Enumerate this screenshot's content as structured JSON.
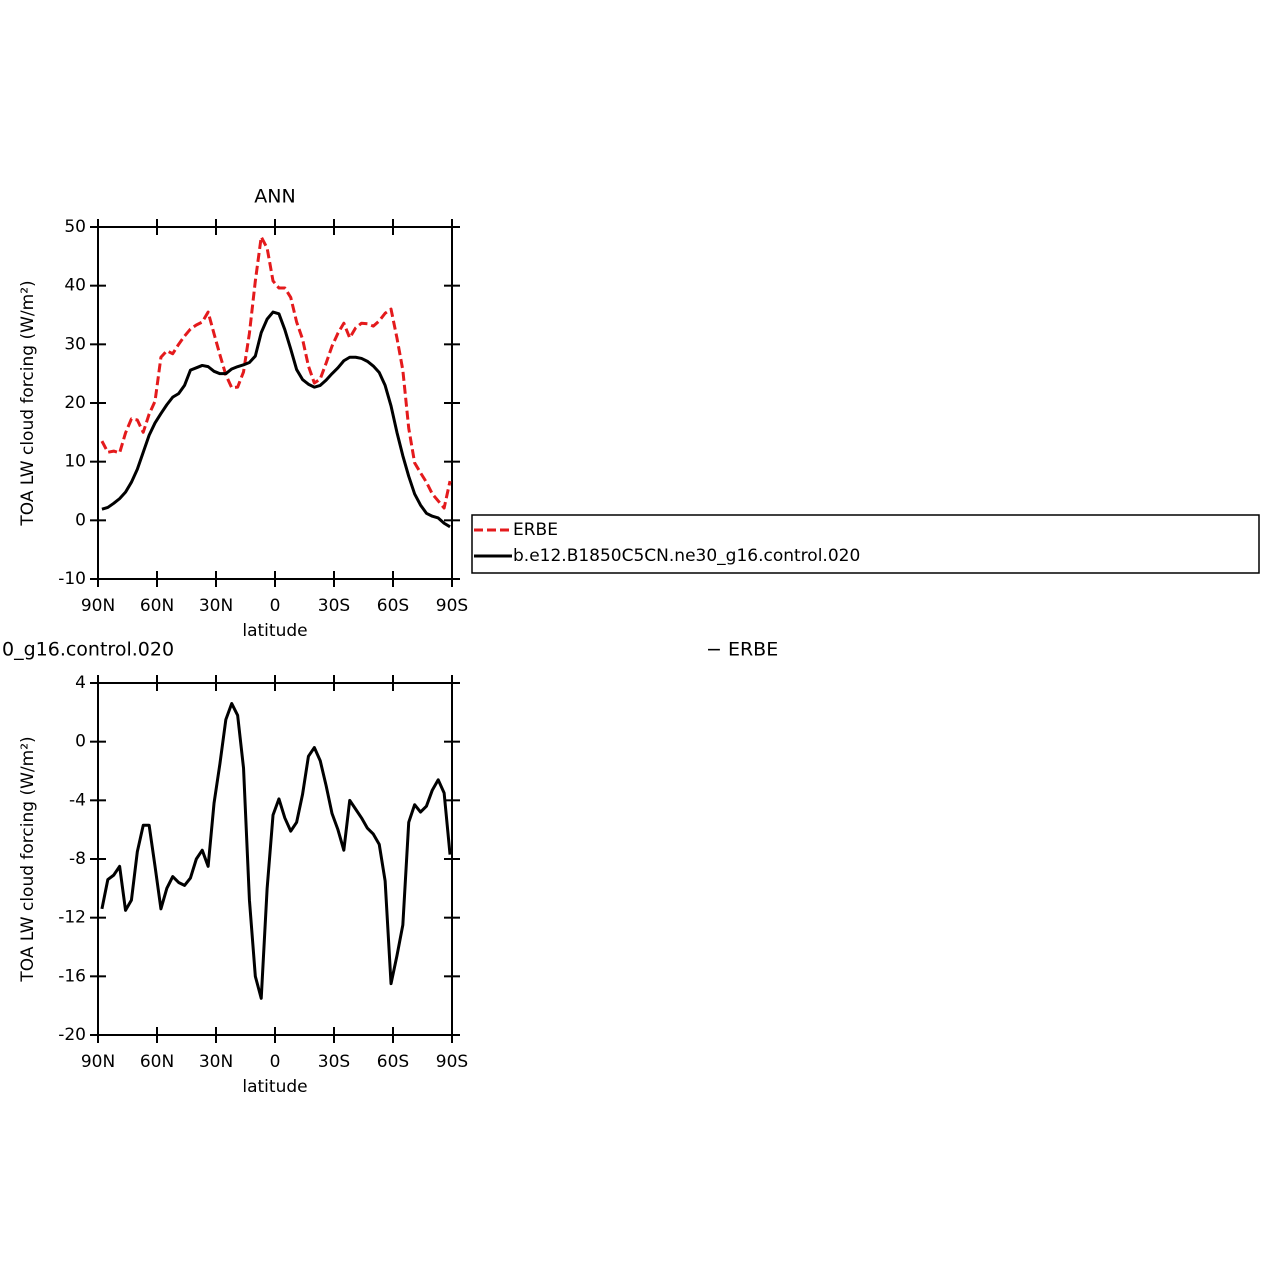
{
  "chart_data": [
    {
      "type": "line",
      "title": "ANN",
      "xlabel": "latitude",
      "ylabel": "TOA LW cloud forcing (W/m²)",
      "x": [
        88,
        85,
        82,
        79,
        76,
        73,
        70,
        67,
        64,
        61,
        58,
        55,
        52,
        49,
        46,
        43,
        40,
        37,
        34,
        31,
        28,
        25,
        22,
        19,
        16,
        13,
        10,
        7,
        4,
        1,
        -2,
        -5,
        -8,
        -11,
        -14,
        -17,
        -20,
        -23,
        -26,
        -29,
        -32,
        -35,
        -38,
        -41,
        -44,
        -47,
        -50,
        -53,
        -56,
        -59,
        -62,
        -65,
        -68,
        -71,
        -74,
        -77,
        -80,
        -83,
        -86,
        -89
      ],
      "series": [
        {
          "name": "ERBE",
          "color": "#e41a1c",
          "line_style": "dashed",
          "values": [
            13.5,
            11.6,
            11.8,
            11.5,
            14.9,
            17.3,
            17.1,
            15,
            18.1,
            20.3,
            27.8,
            28.9,
            28.4,
            30,
            31.4,
            32.6,
            33.3,
            33.8,
            35.5,
            31.8,
            28.2,
            24.8,
            22.6,
            22.7,
            25.3,
            31.9,
            40.8,
            48.3,
            46.4,
            40.8,
            39.6,
            39.6,
            38,
            33.8,
            30.9,
            26.3,
            23.4,
            24.1,
            26.8,
            29.7,
            31.9,
            33.6,
            31.1,
            32.8,
            33.6,
            33.5,
            33.1,
            34,
            35.3,
            36,
            31.1,
            25.6,
            15.7,
            9.8,
            8.1,
            6.5,
            4.5,
            3.3,
            2.1,
            6.7
          ]
        },
        {
          "name": "b.e12.B1850C5CN.ne30_g16.control.020",
          "color": "#000000",
          "line_style": "solid",
          "values": [
            1.9,
            2.2,
            2.9,
            3.7,
            4.8,
            6.5,
            8.7,
            11.6,
            14.5,
            16.6,
            18.2,
            19.7,
            21,
            21.6,
            23,
            25.6,
            26,
            26.4,
            26.2,
            25.4,
            25,
            25,
            25.8,
            26.2,
            26.5,
            26.9,
            28,
            32,
            34.3,
            35.5,
            35.2,
            32.5,
            29.2,
            25.7,
            24,
            23.2,
            22.7,
            23,
            23.9,
            25,
            26,
            27.2,
            27.8,
            27.8,
            27.6,
            27.1,
            26.3,
            25.2,
            23,
            19.5,
            15,
            11,
            7.5,
            4.5,
            2.6,
            1.2,
            0.7,
            0.4,
            -0.5,
            -1.1
          ]
        }
      ],
      "xlim": [
        90,
        -90
      ],
      "xticks": [
        {
          "value": 90,
          "label": "90N"
        },
        {
          "value": 60,
          "label": "60N"
        },
        {
          "value": 30,
          "label": "30N"
        },
        0,
        {
          "value": -30,
          "label": "30S"
        },
        {
          "value": -60,
          "label": "60S"
        },
        {
          "value": -90,
          "label": "90S"
        }
      ],
      "ylim": [
        -10,
        50
      ],
      "yticks": [
        -10,
        0,
        10,
        20,
        30,
        40,
        50
      ],
      "legend": "right"
    },
    {
      "type": "line",
      "title_parts": [
        "0_g16.control.020",
        "− ERBE"
      ],
      "xlabel": "latitude",
      "ylabel": "TOA LW cloud forcing (W/m²)",
      "x": [
        88,
        85,
        82,
        79,
        76,
        73,
        70,
        67,
        64,
        61,
        58,
        55,
        52,
        49,
        46,
        43,
        40,
        37,
        34,
        31,
        28,
        25,
        22,
        19,
        16,
        13,
        10,
        7,
        4,
        1,
        -2,
        -5,
        -8,
        -11,
        -14,
        -17,
        -20,
        -23,
        -26,
        -29,
        -32,
        -35,
        -38,
        -41,
        -44,
        -47,
        -50,
        -53,
        -56,
        -59,
        -62,
        -65,
        -68,
        -71,
        -74,
        -77,
        -80,
        -83,
        -86,
        -89
      ],
      "series": [
        {
          "color": "#000000",
          "line_style": "solid",
          "values": [
            -11.4,
            -9.4,
            -9.1,
            -8.5,
            -11.5,
            -10.8,
            -7.5,
            -5.7,
            -5.7,
            -8.5,
            -11.4,
            -10,
            -9.2,
            -9.6,
            -9.8,
            -9.3,
            -8,
            -7.4,
            -8.5,
            -4.2,
            -1.5,
            1.5,
            2.6,
            1.8,
            -1.8,
            -10.8,
            -16,
            -17.5,
            -10,
            -5,
            -3.9,
            -5.2,
            -6.1,
            -5.5,
            -3.6,
            -1,
            -0.4,
            -1.3,
            -3,
            -4.9,
            -6,
            -7.4,
            -4,
            -4.6,
            -5.2,
            -5.9,
            -6.3,
            -7,
            -9.5,
            -16.5,
            -14.6,
            -12.5,
            -5.5,
            -4.3,
            -4.8,
            -4.4,
            -3.3,
            -2.6,
            -3.5,
            -7.7
          ]
        }
      ],
      "xlim": [
        90,
        -90
      ],
      "xticks": [
        {
          "value": 90,
          "label": "90N"
        },
        {
          "value": 60,
          "label": "60N"
        },
        {
          "value": 30,
          "label": "30N"
        },
        0,
        {
          "value": -30,
          "label": "30S"
        },
        {
          "value": -60,
          "label": "60S"
        },
        {
          "value": -90,
          "label": "90S"
        }
      ],
      "ylim": [
        -20,
        4
      ],
      "yticks": [
        -20,
        -16,
        -12,
        -8,
        -4,
        0,
        4
      ]
    }
  ]
}
